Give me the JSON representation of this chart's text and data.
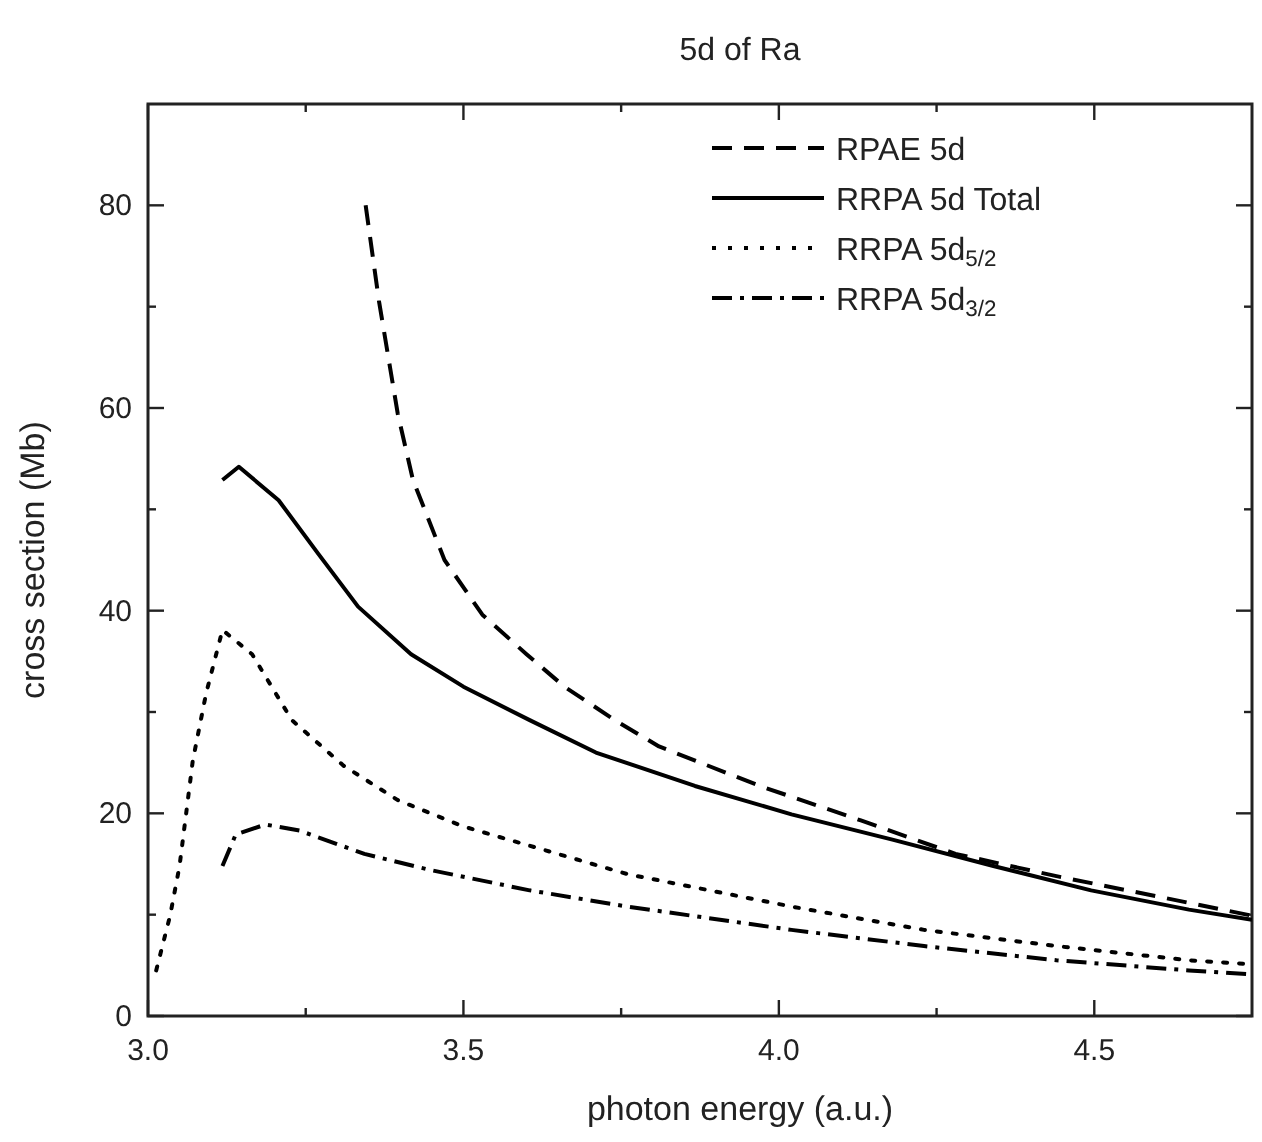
{
  "chart_data": {
    "type": "line",
    "title": "5d of Ra",
    "xlabel": "photon energy (a.u.)",
    "ylabel": "cross section (Mb)",
    "xlim": [
      3.0,
      4.75
    ],
    "ylim": [
      0,
      90
    ],
    "xticks": [
      {
        "value": 3.0,
        "label": "3.0"
      },
      {
        "value": 3.25,
        "label": null
      },
      {
        "value": 3.5,
        "label": "3.5"
      },
      {
        "value": 3.75,
        "label": null
      },
      {
        "value": 4.0,
        "label": "4.0"
      },
      {
        "value": 4.25,
        "label": null
      },
      {
        "value": 4.5,
        "label": "4.5"
      }
    ],
    "yticks": [
      0,
      {
        "value": 10,
        "label": null
      },
      20,
      {
        "value": 30,
        "label": null
      },
      40,
      {
        "value": 50,
        "label": null
      },
      60,
      {
        "value": 70,
        "label": null
      },
      80
    ],
    "legend": "top right",
    "grid": false,
    "marker": "none",
    "series": [
      {
        "name": "RPAE 5d",
        "color": "#000000",
        "line_style": "dashed",
        "x": [
          3.345,
          3.366,
          3.396,
          3.42,
          3.47,
          3.53,
          3.6,
          3.66,
          3.74,
          3.81,
          3.97,
          4.13,
          4.28,
          4.44,
          4.6,
          4.75
        ],
        "values": [
          80,
          70.6,
          59.4,
          52.9,
          45,
          39.6,
          35.7,
          32.5,
          29.2,
          26.6,
          22.7,
          19.3,
          16,
          13.8,
          11.8,
          9.9
        ]
      },
      {
        "name": "RRPA 5d Total",
        "color": "#000000",
        "line_style": "solid",
        "x": [
          3.118,
          3.144,
          3.207,
          3.27,
          3.333,
          3.417,
          3.5,
          3.605,
          3.71,
          3.867,
          4.02,
          4.18,
          4.34,
          4.495,
          4.65,
          4.75
        ],
        "values": [
          52.9,
          54.2,
          50.9,
          45.6,
          40.4,
          35.7,
          32.5,
          29.2,
          26,
          22.7,
          19.9,
          17.4,
          14.8,
          12.4,
          10.5,
          9.5
        ]
      },
      {
        "name": "RRPA 5d$_{5/2}$",
        "color": "#000000",
        "line_style": "dotted",
        "x": [
          3.013,
          3.035,
          3.05,
          3.071,
          3.092,
          3.118,
          3.165,
          3.228,
          3.31,
          3.396,
          3.5,
          3.605,
          3.76,
          4.02,
          4.23,
          4.44,
          4.65,
          4.75
        ],
        "values": [
          4.5,
          9.9,
          14.8,
          25.2,
          31.8,
          38.1,
          35.7,
          29.2,
          24.7,
          21.3,
          18.7,
          16.8,
          14,
          10.8,
          8.5,
          6.9,
          5.5,
          5.1
        ]
      },
      {
        "name": "RRPA 5d$_{3/2}$",
        "color": "#000000",
        "line_style": "dashdot",
        "x": [
          3.118,
          3.139,
          3.186,
          3.24,
          3.343,
          3.448,
          3.605,
          3.76,
          4.02,
          4.23,
          4.44,
          4.65,
          4.75
        ],
        "values": [
          14.8,
          17.9,
          18.9,
          18.3,
          16,
          14.4,
          12.4,
          10.8,
          8.5,
          6.9,
          5.5,
          4.5,
          4.1
        ]
      }
    ]
  }
}
